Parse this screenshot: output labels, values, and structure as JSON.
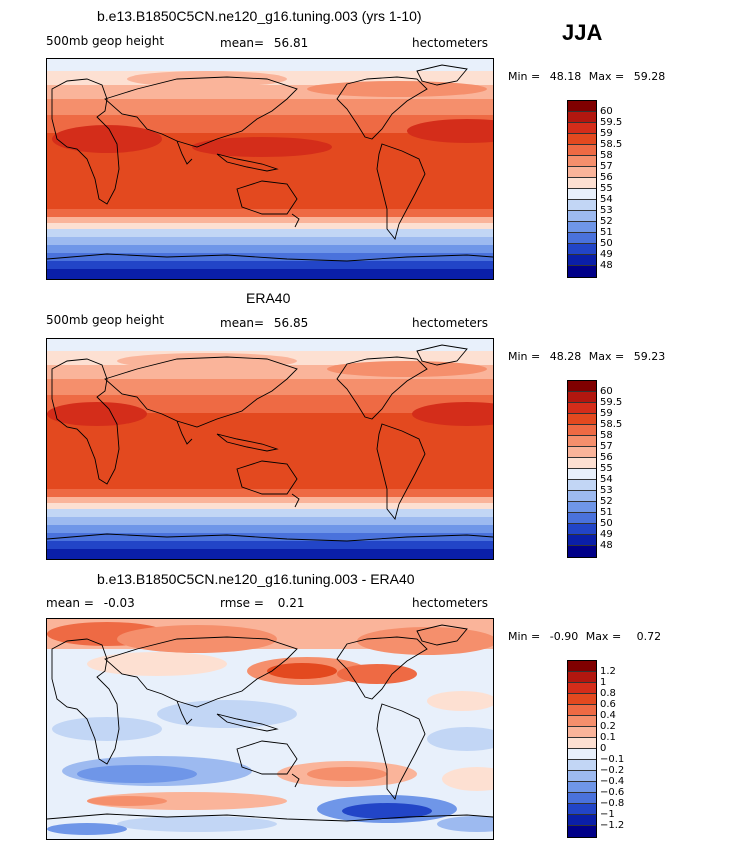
{
  "season": "JJA",
  "panels": [
    {
      "title": "b.e13.B1850C5CN.ne120_g16.tuning.003 (yrs 1-10)",
      "left_label": "500mb geop height",
      "mean_label": "mean=",
      "mean_value": "56.81",
      "right_label": "hectometers",
      "min_label": "Min =",
      "min_value": "48.18",
      "max_label": "Max =",
      "max_value": "59.28"
    },
    {
      "title": "ERA40",
      "left_label": "500mb geop height",
      "mean_label": "mean=",
      "mean_value": "56.85",
      "right_label": "hectometers",
      "min_label": "Min =",
      "min_value": "48.28",
      "max_label": "Max =",
      "max_value": "59.23"
    },
    {
      "title": "b.e13.B1850C5CN.ne120_g16.tuning.003 - ERA40",
      "left_label": "mean =",
      "left_value": "-0.03",
      "mid_label": "rmse =",
      "mid_value": "0.21",
      "right_label": "hectometers",
      "min_label": "Min =",
      "min_value": "-0.90",
      "max_label": "Max =",
      "max_value": "0.72"
    }
  ],
  "colorbar_abs": {
    "labels": [
      "60",
      "59.5",
      "59",
      "58.5",
      "58",
      "57",
      "56",
      "55",
      "54",
      "53",
      "52",
      "51",
      "50",
      "49",
      "48"
    ],
    "colors": [
      "#800000",
      "#b2170f",
      "#d42d1a",
      "#e3491f",
      "#ee6a44",
      "#f58f6c",
      "#fab49a",
      "#fde0d2",
      "#e8f0fb",
      "#c2d6f5",
      "#9dbaf0",
      "#6f96e8",
      "#4a72dc",
      "#2245c7",
      "#0a1fa8",
      "#000088"
    ]
  },
  "colorbar_diff": {
    "labels": [
      "1.2",
      "1",
      "0.8",
      "0.6",
      "0.4",
      "0.2",
      "0.1",
      "0",
      "−0.1",
      "−0.2",
      "−0.4",
      "−0.6",
      "−0.8",
      "−1",
      "−1.2"
    ],
    "colors": [
      "#800000",
      "#b2170f",
      "#d42d1a",
      "#e3491f",
      "#ee6a44",
      "#f58f6c",
      "#fab49a",
      "#fde0d2",
      "#e8f0fb",
      "#c2d6f5",
      "#9dbaf0",
      "#6f96e8",
      "#4a72dc",
      "#2245c7",
      "#0a1fa8",
      "#000088"
    ]
  }
}
